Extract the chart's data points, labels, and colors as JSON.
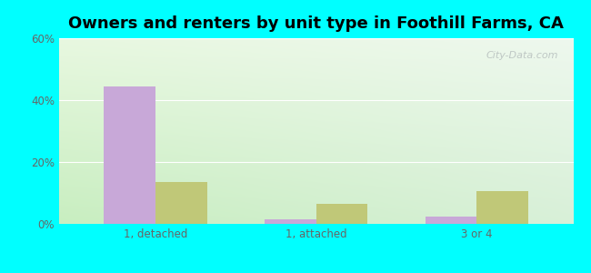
{
  "title": "Owners and renters by unit type in Foothill Farms, CA",
  "categories": [
    "1, detached",
    "1, attached",
    "3 or 4"
  ],
  "owner_values": [
    44.5,
    1.5,
    2.5
  ],
  "renter_values": [
    13.5,
    6.5,
    10.5
  ],
  "owner_color": "#c8a8d8",
  "renter_color": "#c0c878",
  "ylim": [
    0,
    60
  ],
  "yticks": [
    0,
    20,
    40,
    60
  ],
  "ytick_labels": [
    "0%",
    "20%",
    "40%",
    "60%"
  ],
  "bar_width": 0.32,
  "outer_bg": "#00ffff",
  "title_fontsize": 13,
  "watermark": "City-Data.com",
  "grad_left": "#c8eec0",
  "grad_right": "#e8f8e8"
}
